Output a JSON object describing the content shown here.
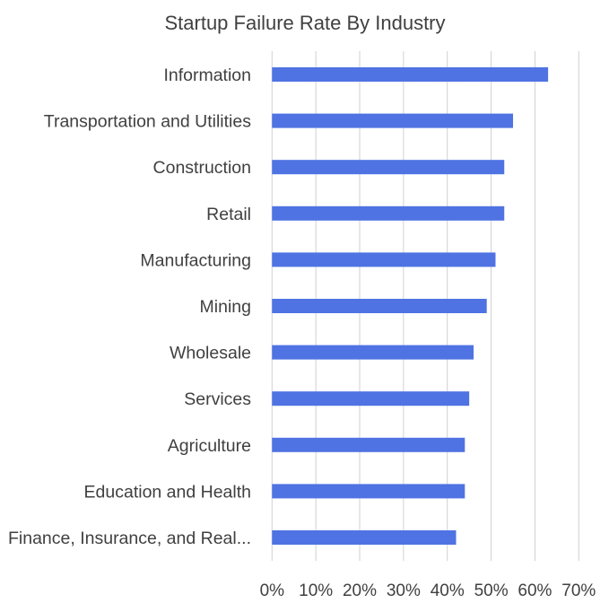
{
  "chart_data": {
    "type": "bar",
    "orientation": "horizontal",
    "title": "Startup Failure Rate By Industry",
    "xlabel": "",
    "ylabel": "",
    "categories": [
      "Information",
      "Transportation and Utilities",
      "Construction",
      "Retail",
      "Manufacturing",
      "Mining",
      "Wholesale",
      "Services",
      "Agriculture",
      "Education and Health",
      "Finance, Insurance, and Real..."
    ],
    "values": [
      0.63,
      0.55,
      0.53,
      0.53,
      0.51,
      0.49,
      0.46,
      0.45,
      0.44,
      0.44,
      0.42
    ],
    "xlim": [
      0,
      0.7
    ],
    "x_ticks": [
      "0%",
      "10%",
      "20%",
      "30%",
      "40%",
      "50%",
      "60%",
      "70%"
    ],
    "grid": "vertical",
    "legend": "none",
    "bar_color": "#4F73E3",
    "grid_color": "#D0D0D0"
  }
}
